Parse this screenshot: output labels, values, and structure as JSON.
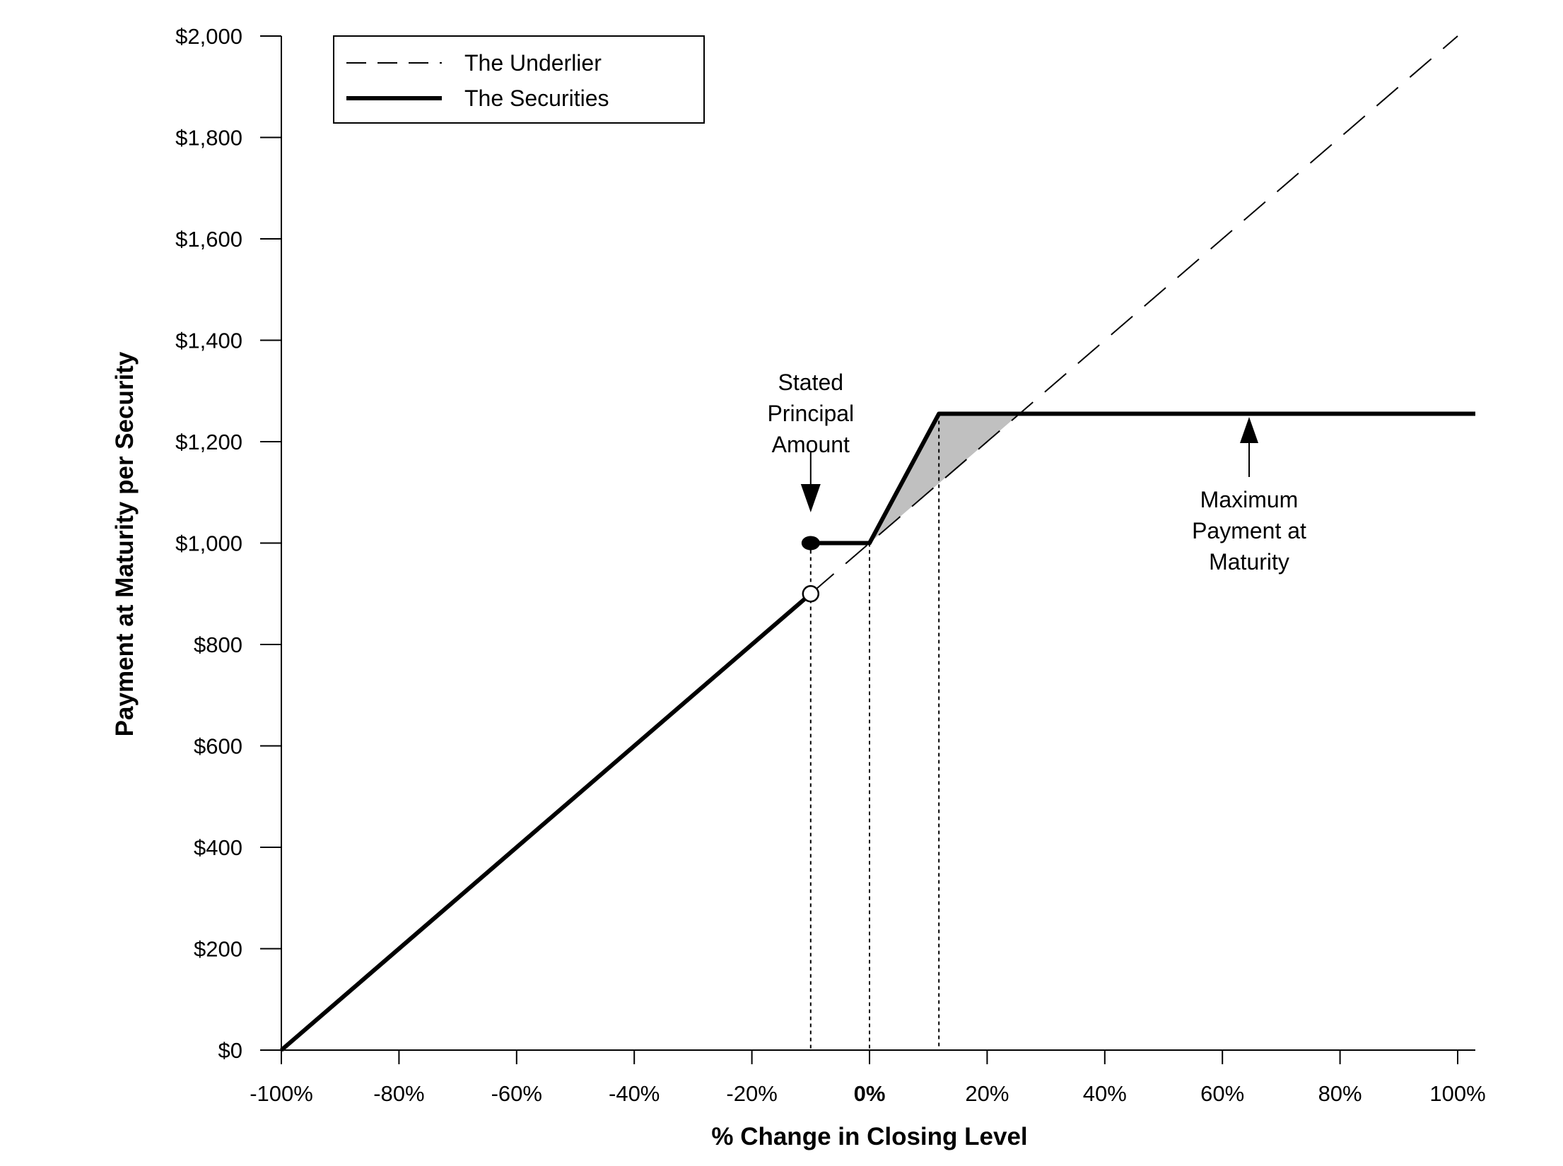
{
  "chart_data": {
    "type": "line",
    "title": "",
    "xlabel": "% Change in Closing Level",
    "ylabel": "Payment at Maturity per Security",
    "xlim": [
      -100,
      103
    ],
    "ylim": [
      0,
      2000
    ],
    "grid": false,
    "legend_position": "top-left",
    "x_ticks": [
      -100,
      -80,
      -60,
      -40,
      -20,
      0,
      20,
      40,
      60,
      80,
      100
    ],
    "x_tick_labels": [
      "-100%",
      "-80%",
      "-60%",
      "-40%",
      "-20%",
      "0%",
      "20%",
      "40%",
      "60%",
      "80%",
      "100%"
    ],
    "y_ticks": [
      0,
      200,
      400,
      600,
      800,
      1000,
      1200,
      1400,
      1600,
      1800,
      2000
    ],
    "y_tick_labels": [
      "$0",
      "$200",
      "$400",
      "$600",
      "$800",
      "$1,000",
      "$1,200",
      "$1,400",
      "$1,600",
      "$1,800",
      "$2,000"
    ],
    "series": [
      {
        "name": "The Underlier",
        "style": "dashed",
        "x": [
          -100,
          100
        ],
        "y": [
          0,
          2000
        ]
      },
      {
        "name": "The Securities",
        "style": "solid-thick",
        "segments": [
          {
            "x": [
              -100,
              -10
            ],
            "y": [
              0,
              900
            ]
          },
          {
            "x": [
              -10,
              0,
              11.8,
              103
            ],
            "y": [
              1000,
              1000,
              1255,
              1255
            ]
          }
        ]
      }
    ],
    "markers": [
      {
        "x": -10,
        "y": 900,
        "type": "open-circle"
      },
      {
        "x": -10,
        "y": 1000,
        "type": "filled-circle"
      }
    ],
    "reference_lines_x": [
      -10,
      0,
      11.8
    ],
    "shaded_region": {
      "x": [
        0,
        11.8,
        25.5,
        11.8
      ],
      "y": [
        1000,
        1255,
        1255,
        1118
      ],
      "color": "#c0c0c0"
    },
    "annotations": [
      {
        "lines": [
          "Stated",
          "Principal",
          "Amount"
        ],
        "x": -10,
        "y": 1000,
        "arrow": "down"
      },
      {
        "lines": [
          "Maximum",
          "Payment at",
          "Maturity"
        ],
        "x": 64,
        "y": 1255,
        "arrow": "up"
      }
    ]
  }
}
